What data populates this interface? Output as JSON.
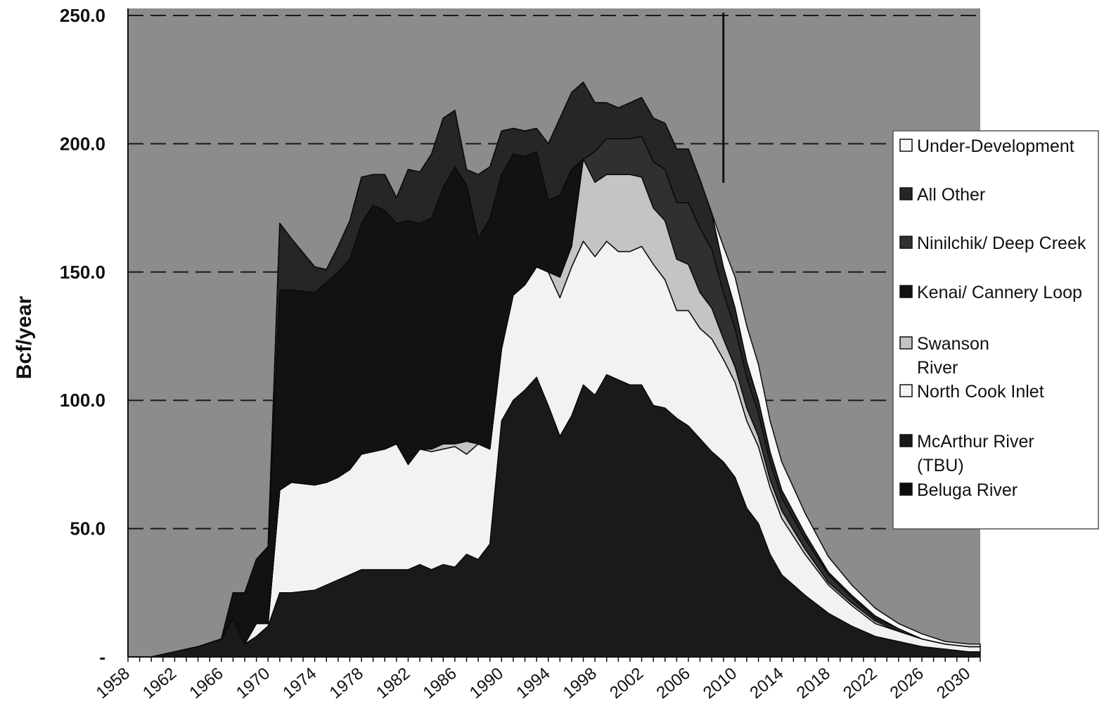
{
  "chart_data": {
    "type": "area",
    "stacked": true,
    "ylabel": "Bcf/year",
    "xlabel": "",
    "title": "",
    "ylim": [
      0,
      250
    ],
    "xlim": [
      1958,
      2031
    ],
    "y_ticks": [
      "-",
      "50.0",
      "100.0",
      "150.0",
      "200.0",
      "250.0"
    ],
    "y_tick_values": [
      0,
      50,
      100,
      150,
      200,
      250
    ],
    "x_ticks": [
      "1958",
      "1962",
      "1966",
      "1970",
      "1974",
      "1978",
      "1982",
      "1986",
      "1990",
      "1994",
      "1998",
      "2002",
      "2006",
      "2010",
      "2014",
      "2018",
      "2022",
      "2026",
      "2030"
    ],
    "x_tick_values": [
      1958,
      1962,
      1966,
      1970,
      1974,
      1978,
      1982,
      1986,
      1990,
      1994,
      1998,
      2002,
      2006,
      2010,
      2014,
      2018,
      2022,
      2026,
      2030
    ],
    "grid": "dashed horizontal",
    "legend_position": "right",
    "vertical_marker_year": 2009,
    "colors": {
      "plot_background": "#8c8c8c",
      "Beluga River": "#0d0d0d",
      "McArthur River (TBU)": "#1a1a1a",
      "North Cook Inlet": "#f2f2f2",
      "Swanson River": "#c4c4c4",
      "Kenai/ Cannery Loop": "#121212",
      "Ninilchik/ Deep Creek": "#303030",
      "All Other": "#262626",
      "Under-Development": "#f7f7f7"
    },
    "x": [
      1958,
      1960,
      1961,
      1962,
      1964,
      1966,
      1967,
      1968,
      1969,
      1970,
      1971,
      1972,
      1974,
      1975,
      1976,
      1977,
      1978,
      1979,
      1980,
      1981,
      1982,
      1983,
      1984,
      1985,
      1986,
      1987,
      1988,
      1989,
      1990,
      1991,
      1992,
      1993,
      1994,
      1995,
      1996,
      1997,
      1998,
      1999,
      2000,
      2001,
      2002,
      2003,
      2004,
      2005,
      2006,
      2007,
      2008,
      2009,
      2010,
      2011,
      2012,
      2013,
      2014,
      2016,
      2018,
      2020,
      2022,
      2024,
      2026,
      2028,
      2030,
      2031
    ],
    "series": [
      {
        "name": "Beluga River",
        "values": [
          0,
          0,
          0,
          0,
          0,
          0,
          0,
          0,
          0,
          0,
          0,
          0,
          0,
          0,
          0,
          0,
          0,
          0,
          0,
          0,
          0,
          0,
          0,
          0,
          0,
          0,
          0,
          0,
          0,
          0,
          0,
          0,
          0,
          0,
          0,
          0,
          0,
          0,
          0,
          0,
          0,
          0,
          0,
          0,
          0,
          0,
          0,
          0,
          0,
          0,
          0,
          0,
          0,
          0,
          0,
          0,
          0,
          0,
          0,
          0,
          0,
          0
        ]
      },
      {
        "name": "McArthur River (TBU)",
        "values": [
          0,
          0,
          1,
          2,
          4,
          7,
          15,
          5,
          8,
          12,
          25,
          25,
          26,
          28,
          30,
          32,
          34,
          34,
          34,
          34,
          34,
          36,
          34,
          36,
          35,
          40,
          38,
          44,
          92,
          100,
          104,
          109,
          98,
          86,
          94,
          106,
          102,
          110,
          108,
          106,
          106,
          98,
          97,
          93,
          90,
          85,
          80,
          76,
          70,
          58,
          52,
          40,
          32,
          24,
          17,
          12,
          8,
          6,
          4,
          3,
          2,
          2
        ]
      },
      {
        "name": "North Cook Inlet",
        "values": [
          0,
          0,
          0,
          0,
          0,
          0,
          0,
          0,
          5,
          1,
          40,
          43,
          41,
          40,
          40,
          41,
          45,
          46,
          47,
          49,
          41,
          45,
          46,
          45,
          47,
          39,
          45,
          37,
          28,
          41,
          41,
          43,
          52,
          54,
          58,
          56,
          54,
          52,
          50,
          52,
          54,
          55,
          50,
          42,
          45,
          43,
          44,
          40,
          37,
          34,
          30,
          26,
          22,
          16,
          11,
          8,
          5,
          4,
          3,
          2,
          2,
          2
        ]
      },
      {
        "name": "Swanson River",
        "values": [
          0,
          0,
          0,
          0,
          0,
          0,
          0,
          0,
          0,
          0,
          0,
          0,
          0,
          0,
          0,
          0,
          0,
          0,
          0,
          0,
          0,
          0,
          1,
          2,
          1,
          5,
          0,
          0,
          0,
          0,
          0,
          0,
          0,
          8,
          8,
          32,
          29,
          26,
          30,
          30,
          27,
          22,
          23,
          20,
          18,
          14,
          12,
          8,
          6,
          5,
          4,
          3,
          3,
          2,
          1,
          1,
          1,
          0,
          0,
          0,
          0,
          0
        ]
      },
      {
        "name": "Kenai/ Cannery Loop",
        "values": [
          0,
          0,
          0,
          0,
          0,
          0,
          10,
          20,
          25,
          30,
          78,
          75,
          75,
          78,
          80,
          82,
          90,
          96,
          93,
          86,
          95,
          88,
          90,
          100,
          108,
          100,
          80,
          90,
          68,
          55,
          50,
          45,
          28,
          32,
          30,
          0,
          0,
          0,
          0,
          0,
          0,
          0,
          0,
          0,
          0,
          0,
          0,
          0,
          0,
          0,
          0,
          0,
          0,
          0,
          0,
          0,
          0,
          0,
          0,
          0,
          0,
          0
        ]
      },
      {
        "name": "Ninilchik/ Deep Creek",
        "values": [
          0,
          0,
          0,
          0,
          0,
          0,
          0,
          0,
          0,
          0,
          0,
          0,
          0,
          0,
          0,
          0,
          0,
          0,
          0,
          0,
          0,
          0,
          0,
          0,
          0,
          0,
          0,
          0,
          0,
          0,
          0,
          0,
          0,
          0,
          0,
          0,
          12,
          14,
          14,
          14,
          16,
          18,
          20,
          22,
          24,
          25,
          23,
          18,
          15,
          12,
          9,
          7,
          5,
          4,
          3,
          2,
          1,
          1,
          0,
          0,
          0,
          0
        ]
      },
      {
        "name": "All Other",
        "values": [
          0,
          0,
          0,
          0,
          0,
          0,
          0,
          0,
          0,
          0,
          26,
          20,
          10,
          5,
          10,
          15,
          18,
          12,
          14,
          10,
          20,
          20,
          25,
          27,
          22,
          6,
          25,
          20,
          17,
          10,
          10,
          9,
          22,
          30,
          30,
          30,
          19,
          14,
          12,
          14,
          15,
          17,
          18,
          21,
          21,
          19,
          14,
          10,
          8,
          6,
          5,
          4,
          3,
          2,
          1,
          1,
          1,
          0,
          0,
          0,
          0,
          0
        ]
      },
      {
        "name": "Under-Development",
        "values": [
          0,
          0,
          0,
          0,
          0,
          0,
          0,
          0,
          0,
          0,
          0,
          0,
          0,
          0,
          0,
          0,
          0,
          0,
          0,
          0,
          0,
          0,
          0,
          0,
          0,
          0,
          0,
          0,
          0,
          0,
          0,
          0,
          0,
          0,
          0,
          0,
          0,
          0,
          0,
          0,
          0,
          0,
          0,
          0,
          0,
          0,
          0,
          8,
          12,
          14,
          14,
          12,
          11,
          8,
          6,
          4,
          3,
          2,
          2,
          1,
          1,
          1
        ]
      }
    ],
    "legend": [
      {
        "label": "Under-Development",
        "series": "Under-Development"
      },
      {
        "label": "All Other",
        "series": "All Other"
      },
      {
        "label": "Ninilchik/ Deep Creek",
        "series": "Ninilchik/ Deep Creek"
      },
      {
        "label": "Kenai/ Cannery Loop",
        "series": "Kenai/ Cannery Loop"
      },
      {
        "label": "Swanson",
        "label2": "River",
        "series": "Swanson River"
      },
      {
        "label": "North Cook Inlet",
        "series": "North Cook Inlet"
      },
      {
        "label": "McArthur River",
        "label2": "(TBU)",
        "series": "McArthur River (TBU)"
      },
      {
        "label": "Beluga River",
        "series": "Beluga River"
      }
    ]
  }
}
